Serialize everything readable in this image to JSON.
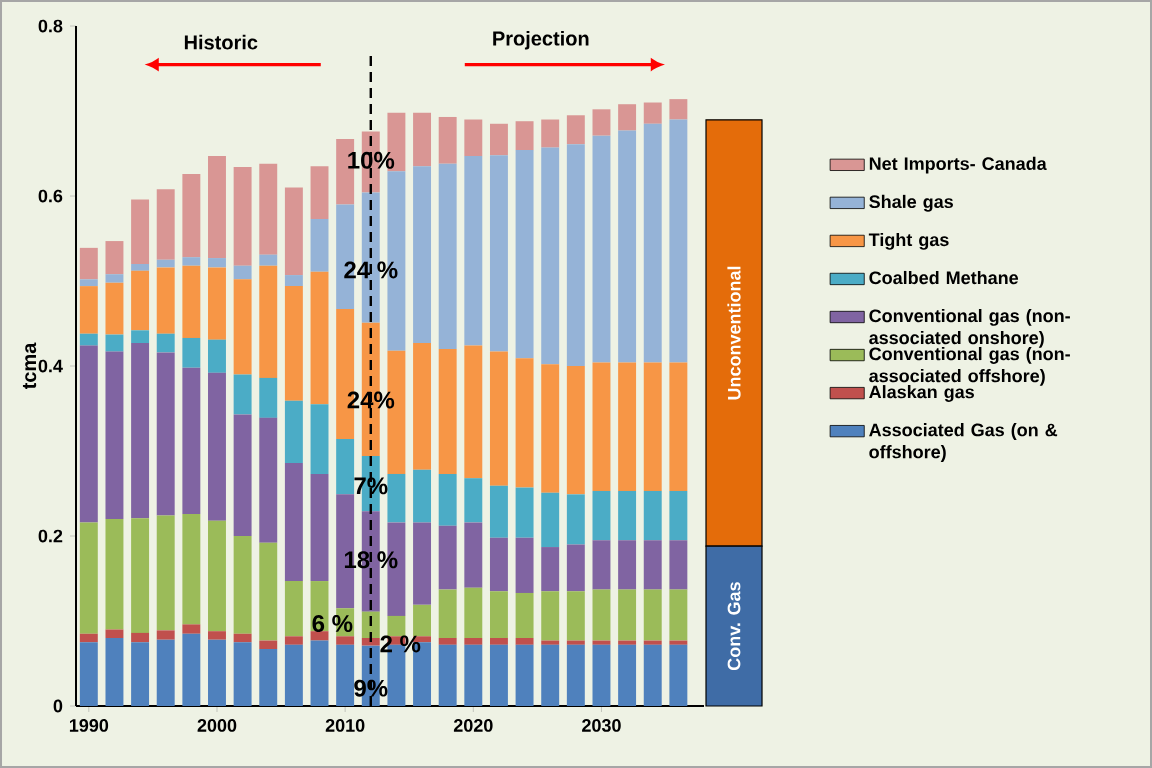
{
  "chart_data": {
    "type": "bar",
    "stacked": true,
    "ylabel": "tcma",
    "legend": "right",
    "x": [
      1990,
      1992,
      1994,
      1996,
      1998,
      2000,
      2002,
      2004,
      2006,
      2008,
      2010,
      2012,
      2014,
      2016,
      2018,
      2020,
      2022,
      2024,
      2026,
      2028,
      2030,
      2032,
      2034,
      2036
    ],
    "xlim": [
      1989,
      2038
    ],
    "xticks": [
      1990,
      2000,
      2010,
      2020,
      2030
    ],
    "ylim": [
      0,
      0.8
    ],
    "yticks": [
      0,
      0.2,
      0.4,
      0.6,
      0.8
    ],
    "series": [
      {
        "name": "Associated Gas (on & offshore)",
        "color": "#4f81bd",
        "values": [
          0.075,
          0.08,
          0.075,
          0.078,
          0.085,
          0.078,
          0.075,
          0.067,
          0.072,
          0.077,
          0.072,
          0.071,
          0.072,
          0.075,
          0.072,
          0.072,
          0.072,
          0.072,
          0.072,
          0.072,
          0.072,
          0.072,
          0.072,
          0.072
        ]
      },
      {
        "name": "Alaskan gas",
        "color": "#c0504d",
        "values": [
          0.01,
          0.01,
          0.011,
          0.011,
          0.011,
          0.01,
          0.01,
          0.01,
          0.01,
          0.011,
          0.01,
          0.009,
          0.01,
          0.007,
          0.008,
          0.008,
          0.008,
          0.008,
          0.005,
          0.005,
          0.005,
          0.005,
          0.005,
          0.005
        ]
      },
      {
        "name": "Conventional gas (non-associated offshore)",
        "color": "#9bbb59",
        "values": [
          0.131,
          0.13,
          0.135,
          0.135,
          0.13,
          0.13,
          0.115,
          0.115,
          0.065,
          0.059,
          0.033,
          0.031,
          0.024,
          0.037,
          0.057,
          0.059,
          0.055,
          0.053,
          0.058,
          0.058,
          0.06,
          0.06,
          0.06,
          0.06
        ]
      },
      {
        "name": "Conventional gas (non-associated onshore)",
        "color": "#8064a2",
        "values": [
          0.208,
          0.197,
          0.206,
          0.192,
          0.172,
          0.174,
          0.143,
          0.147,
          0.139,
          0.126,
          0.134,
          0.118,
          0.11,
          0.097,
          0.075,
          0.077,
          0.063,
          0.065,
          0.052,
          0.055,
          0.058,
          0.058,
          0.058,
          0.058
        ]
      },
      {
        "name": "Coalbed Methane",
        "color": "#4bacc6",
        "values": [
          0.014,
          0.02,
          0.015,
          0.022,
          0.035,
          0.039,
          0.047,
          0.047,
          0.073,
          0.082,
          0.065,
          0.065,
          0.057,
          0.062,
          0.061,
          0.052,
          0.061,
          0.059,
          0.064,
          0.059,
          0.058,
          0.058,
          0.058,
          0.058
        ]
      },
      {
        "name": "Tight gas",
        "color": "#f79646",
        "values": [
          0.056,
          0.061,
          0.07,
          0.078,
          0.085,
          0.085,
          0.112,
          0.132,
          0.135,
          0.156,
          0.153,
          0.157,
          0.145,
          0.149,
          0.147,
          0.156,
          0.158,
          0.152,
          0.151,
          0.151,
          0.151,
          0.151,
          0.151,
          0.151
        ]
      },
      {
        "name": "Shale gas",
        "color": "#95b3d7",
        "values": [
          0.008,
          0.01,
          0.008,
          0.009,
          0.01,
          0.011,
          0.016,
          0.013,
          0.013,
          0.062,
          0.123,
          0.153,
          0.211,
          0.208,
          0.218,
          0.223,
          0.231,
          0.245,
          0.255,
          0.261,
          0.267,
          0.273,
          0.281,
          0.286
        ]
      },
      {
        "name": "Net Imports- Canada",
        "color": "#d99694",
        "values": [
          0.037,
          0.039,
          0.076,
          0.083,
          0.098,
          0.12,
          0.116,
          0.107,
          0.103,
          0.062,
          0.077,
          0.072,
          0.069,
          0.063,
          0.055,
          0.043,
          0.037,
          0.034,
          0.033,
          0.034,
          0.031,
          0.031,
          0.025,
          0.024
        ]
      }
    ],
    "ref_lines": [
      {
        "axis": "x",
        "value": 2012,
        "line_style": "dashed"
      }
    ],
    "annotations": [
      {
        "text": "10%",
        "x": 2012,
        "y": 0.642
      },
      {
        "text": "24 %",
        "x": 2012,
        "y": 0.513
      },
      {
        "text": "24%",
        "x": 2012,
        "y": 0.36
      },
      {
        "text": "7%",
        "x": 2012,
        "y": 0.259
      },
      {
        "text": "18 %",
        "x": 2012,
        "y": 0.172
      },
      {
        "text": "6 %",
        "x": 2009,
        "y": 0.097
      },
      {
        "text": "2 %",
        "x": 2014.3,
        "y": 0.073
      },
      {
        "text": "9%",
        "x": 2012,
        "y": 0.021
      },
      "Historic",
      "Projection",
      "Unconventional",
      "Conv. Gas"
    ]
  }
}
